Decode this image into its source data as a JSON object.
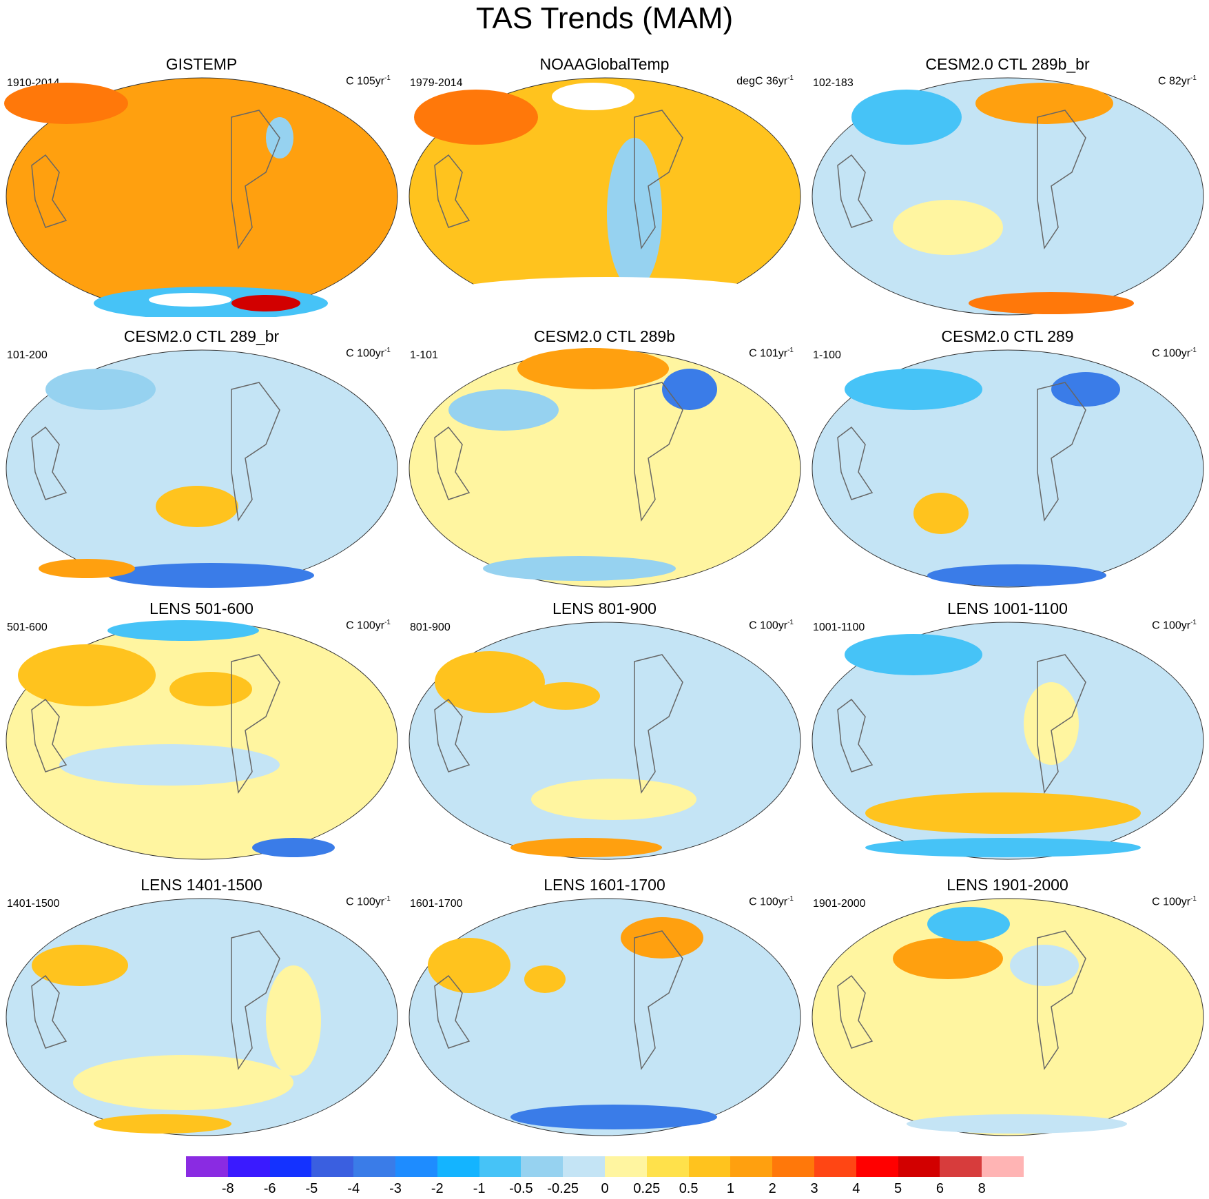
{
  "figure": {
    "title": "TAS Trends (MAM)"
  },
  "panels": [
    {
      "title": "GISTEMP",
      "period": "1910-2014",
      "units": "C 105yr",
      "units_exp": "-1"
    },
    {
      "title": "NOAAGlobalTemp",
      "period": "1979-2014",
      "units": "degC 36yr",
      "units_exp": "-1"
    },
    {
      "title": "CESM2.0 CTL 289b_br",
      "period": "102-183",
      "units": "C 82yr",
      "units_exp": "-1"
    },
    {
      "title": "CESM2.0 CTL 289_br",
      "period": "101-200",
      "units": "C 100yr",
      "units_exp": "-1"
    },
    {
      "title": "CESM2.0 CTL 289b",
      "period": "1-101",
      "units": "C 101yr",
      "units_exp": "-1"
    },
    {
      "title": "CESM2.0 CTL 289",
      "period": "1-100",
      "units": "C 100yr",
      "units_exp": "-1"
    },
    {
      "title": "LENS 501-600",
      "period": "501-600",
      "units": "C 100yr",
      "units_exp": "-1"
    },
    {
      "title": "LENS 801-900",
      "period": "801-900",
      "units": "C 100yr",
      "units_exp": "-1"
    },
    {
      "title": "LENS 1001-1100",
      "period": "1001-1100",
      "units": "C 100yr",
      "units_exp": "-1"
    },
    {
      "title": "LENS 1401-1500",
      "period": "1401-1500",
      "units": "C 100yr",
      "units_exp": "-1"
    },
    {
      "title": "LENS 1601-1700",
      "period": "1601-1700",
      "units": "C 100yr",
      "units_exp": "-1"
    },
    {
      "title": "LENS 1901-2000",
      "period": "1901-2000",
      "units": "C 100yr",
      "units_exp": "-1"
    }
  ],
  "colorbar": {
    "colors": [
      "#8a2be2",
      "#3a1aff",
      "#1432ff",
      "#3a5fe0",
      "#3a7ce8",
      "#1e8cff",
      "#14b4ff",
      "#46c3f7",
      "#96d2f0",
      "#c4e4f5",
      "#fff5a0",
      "#ffe14b",
      "#ffc31e",
      "#ffa00f",
      "#ff780a",
      "#ff4614",
      "#ff0000",
      "#d20000",
      "#d73c3c",
      "#ffb4b4"
    ],
    "labels": [
      "-8",
      "-6",
      "-5",
      "-4",
      "-3",
      "-2",
      "-1",
      "-0.5",
      "-0.25",
      "0",
      "0.25",
      "0.5",
      "1",
      "2",
      "3",
      "4",
      "5",
      "6",
      "8"
    ]
  }
}
